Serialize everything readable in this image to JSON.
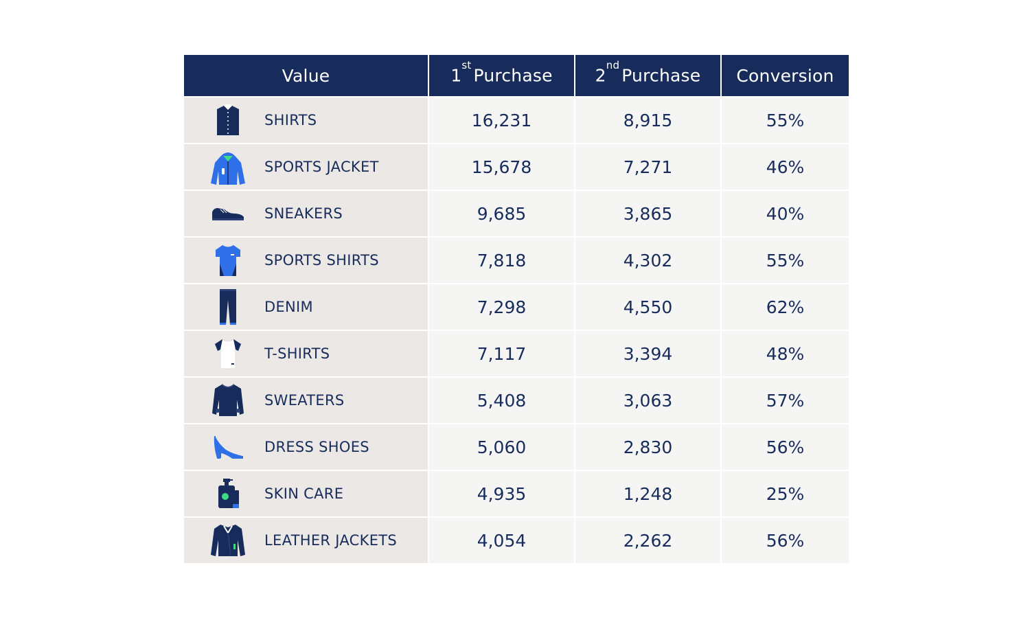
{
  "chart_data": {
    "type": "table",
    "columns": [
      {
        "key": "value",
        "label": "Value"
      },
      {
        "key": "first",
        "num": "1",
        "sup": "st",
        "label": "Purchase"
      },
      {
        "key": "second",
        "num": "2",
        "sup": "nd",
        "label": "Purchase"
      },
      {
        "key": "conversion",
        "label": "Conversion"
      }
    ],
    "rows": [
      {
        "name": "SHIRTS",
        "icon": "shirt-icon",
        "first": "16,231",
        "second": "8,915",
        "conversion": "55%"
      },
      {
        "name": "SPORTS JACKET",
        "icon": "hooded-jacket-icon",
        "first": "15,678",
        "second": "7,271",
        "conversion": "46%"
      },
      {
        "name": "SNEAKERS",
        "icon": "sneaker-icon",
        "first": "9,685",
        "second": "3,865",
        "conversion": "40%"
      },
      {
        "name": "SPORTS SHIRTS",
        "icon": "sports-shirt-icon",
        "first": "7,818",
        "second": "4,302",
        "conversion": "55%"
      },
      {
        "name": "DENIM",
        "icon": "jeans-icon",
        "first": "7,298",
        "second": "4,550",
        "conversion": "62%"
      },
      {
        "name": "T-SHIRTS",
        "icon": "t-shirt-icon",
        "first": "7,117",
        "second": "3,394",
        "conversion": "48%"
      },
      {
        "name": "SWEATERS",
        "icon": "sweater-icon",
        "first": "5,408",
        "second": "3,063",
        "conversion": "57%"
      },
      {
        "name": "DRESS SHOES",
        "icon": "high-heel-icon",
        "first": "5,060",
        "second": "2,830",
        "conversion": "56%"
      },
      {
        "name": "SKIN CARE",
        "icon": "lotion-bottle-icon",
        "first": "4,935",
        "second": "1,248",
        "conversion": "25%"
      },
      {
        "name": "LEATHER JACKETS",
        "icon": "leather-jacket-icon",
        "first": "4,054",
        "second": "2,262",
        "conversion": "56%"
      }
    ]
  },
  "colors": {
    "header_bg": "#182c5c",
    "header_text": "#ffffff",
    "name_cell_bg": "#ebe8e6",
    "value_cell_bg": "#f5f5f4",
    "text": "#182c5c",
    "accent_blue": "#2f6fe8",
    "accent_green": "#3ddc84"
  }
}
